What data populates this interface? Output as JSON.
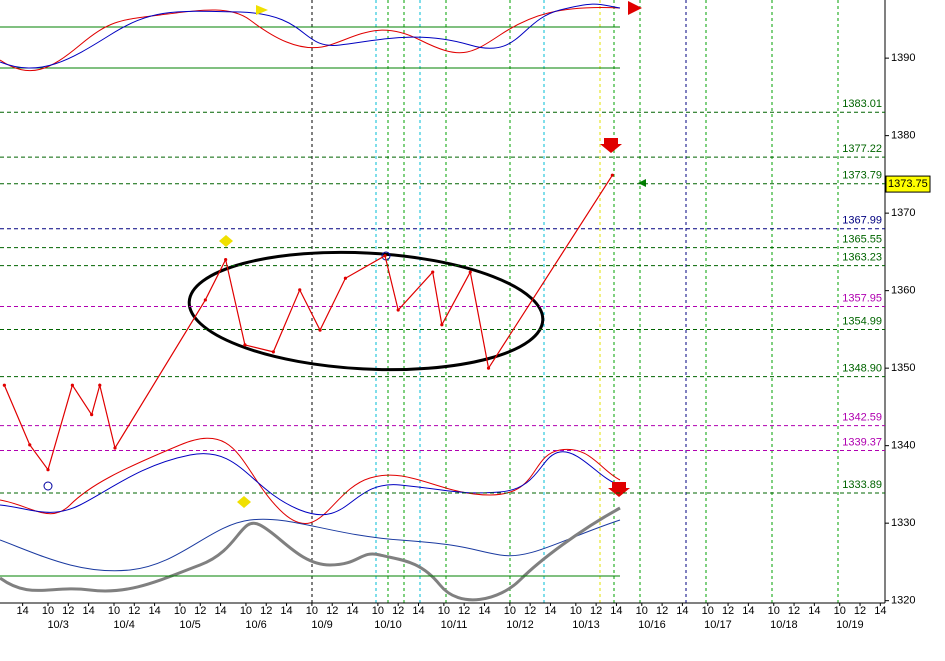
{
  "chart_data": {
    "type": "line",
    "xlim": [
      -4.23,
      82.96
    ],
    "ylim": [
      1319.7,
      1397.5
    ],
    "yticks": [
      1320,
      1330,
      1340,
      1350,
      1360,
      1370,
      1380,
      1390
    ],
    "xticks": [
      {
        "value": -2,
        "label": "14"
      },
      {
        "value": 0.5,
        "label": "10"
      },
      {
        "value": 2.5,
        "label": "12"
      },
      {
        "value": 4.5,
        "label": "14"
      },
      {
        "value": 7,
        "label": "10"
      },
      {
        "value": 9,
        "label": "12"
      },
      {
        "value": 11,
        "label": "14"
      },
      {
        "value": 13.5,
        "label": "10"
      },
      {
        "value": 15.5,
        "label": "12"
      },
      {
        "value": 17.5,
        "label": "14"
      },
      {
        "value": 20,
        "label": "10"
      },
      {
        "value": 22,
        "label": "12"
      },
      {
        "value": 24,
        "label": "14"
      },
      {
        "value": 26.5,
        "label": "10"
      },
      {
        "value": 28.5,
        "label": "12"
      },
      {
        "value": 30.5,
        "label": "14"
      },
      {
        "value": 33,
        "label": "10"
      },
      {
        "value": 35,
        "label": "12"
      },
      {
        "value": 37,
        "label": "14"
      },
      {
        "value": 39.5,
        "label": "10"
      },
      {
        "value": 41.5,
        "label": "12"
      },
      {
        "value": 43.5,
        "label": "14"
      },
      {
        "value": 46,
        "label": "10"
      },
      {
        "value": 48,
        "label": "12"
      },
      {
        "value": 50,
        "label": "14"
      },
      {
        "value": 52.5,
        "label": "10"
      },
      {
        "value": 54.5,
        "label": "12"
      },
      {
        "value": 56.5,
        "label": "14"
      },
      {
        "value": 59,
        "label": "10"
      },
      {
        "value": 61,
        "label": "12"
      },
      {
        "value": 63,
        "label": "14"
      },
      {
        "value": 65.5,
        "label": "10"
      },
      {
        "value": 67.5,
        "label": "12"
      },
      {
        "value": 69.5,
        "label": "14"
      },
      {
        "value": 72,
        "label": "10"
      },
      {
        "value": 74,
        "label": "12"
      },
      {
        "value": 76,
        "label": "14"
      },
      {
        "value": 78.5,
        "label": "10"
      },
      {
        "value": 80.5,
        "label": "12"
      },
      {
        "value": 82.5,
        "label": "14"
      }
    ],
    "date_labels": [
      {
        "value": 1.5,
        "label": "10/3"
      },
      {
        "value": 8,
        "label": "10/4"
      },
      {
        "value": 14.5,
        "label": "10/5"
      },
      {
        "value": 21,
        "label": "10/6"
      },
      {
        "value": 27.5,
        "label": "10/9"
      },
      {
        "value": 34,
        "label": "10/10"
      },
      {
        "value": 40.5,
        "label": "10/11"
      },
      {
        "value": 47,
        "label": "10/12"
      },
      {
        "value": 53.5,
        "label": "10/13"
      },
      {
        "value": 60,
        "label": "10/16"
      },
      {
        "value": 66.5,
        "label": "10/17"
      },
      {
        "value": 73,
        "label": "10/18"
      },
      {
        "value": 79.5,
        "label": "10/19"
      }
    ],
    "series": [
      {
        "color": "#e00000",
        "x": [
          -3.8,
          -1.3,
          0.5,
          2.9,
          4.8,
          5.6,
          7.1,
          16.0,
          18.0,
          19.9,
          22.7,
          25.3,
          27.3,
          29.8,
          33.7,
          35.0,
          38.4,
          39.3,
          42.1,
          43.9,
          56.1
        ],
        "values": [
          1347.8,
          1340.1,
          1336.9,
          1347.8,
          1344.0,
          1347.8,
          1339.7,
          1358.8,
          1364.0,
          1353.0,
          1352.1,
          1360.1,
          1354.9,
          1361.6,
          1364.5,
          1357.5,
          1362.4,
          1355.6,
          1362.4,
          1350.0,
          1374.9
        ]
      }
    ],
    "levels": [
      {
        "value": 1383.01,
        "label": "1383.01",
        "color": "#006400"
      },
      {
        "value": 1377.22,
        "label": "1377.22",
        "color": "#006400"
      },
      {
        "value": 1373.79,
        "label": "1373.79",
        "color": "#006400"
      },
      {
        "value": 1367.99,
        "label": "1367.99",
        "color": "#000080"
      },
      {
        "value": 1365.55,
        "label": "1365.55",
        "color": "#006400"
      },
      {
        "value": 1363.23,
        "label": "1363.23",
        "color": "#006400"
      },
      {
        "value": 1357.95,
        "label": "1357.95",
        "color": "#b000b0"
      },
      {
        "value": 1354.99,
        "label": "1354.99",
        "color": "#006400"
      },
      {
        "value": 1348.9,
        "label": "1348.90",
        "color": "#006400"
      },
      {
        "value": 1342.59,
        "label": "1342.59",
        "color": "#b000b0"
      },
      {
        "value": 1339.37,
        "label": "1339.37",
        "color": "#b000b0"
      },
      {
        "value": 1333.89,
        "label": "1333.89",
        "color": "#006400"
      }
    ],
    "last_price": 1373.75
  }
}
